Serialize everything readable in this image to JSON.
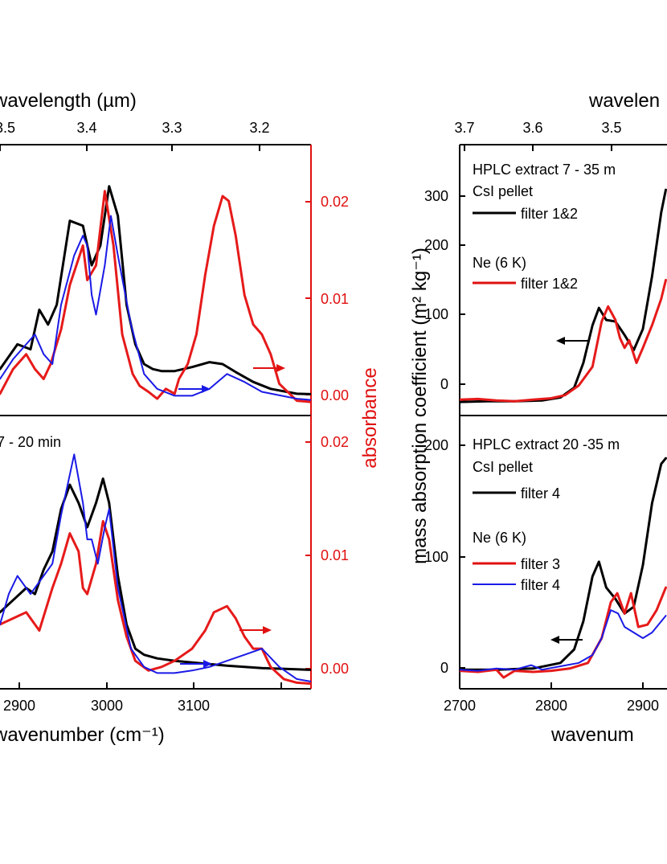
{
  "colors": {
    "black": "#000000",
    "red": "#e61a1a",
    "blue": "#1a1ae6"
  },
  "chart_data": [
    {
      "type": "line",
      "panel": "left-top",
      "x_label_top": "wavelength (µm)",
      "x_ticks_top": [
        "3.5",
        "3.4",
        "3.3",
        "3.2"
      ],
      "ylabel_right": "absorbance",
      "y_ticks_right": [
        "0.00",
        "0.01",
        "0.02"
      ],
      "ylim_right": [
        -0.0012,
        0.0262
      ],
      "xlim": [
        2800,
        3225
      ],
      "series": [
        {
          "color": "black",
          "x": [
            2800,
            2820,
            2835,
            2845,
            2855,
            2865,
            2880,
            2895,
            2905,
            2915,
            2925,
            2935,
            2945,
            2955,
            2965,
            2975,
            2985,
            3000,
            3020,
            3040,
            3055,
            3070,
            3090,
            3110,
            3140,
            3180,
            3225
          ],
          "y": [
            0.0035,
            0.006,
            0.0055,
            0.0095,
            0.008,
            0.01,
            0.0185,
            0.018,
            0.014,
            0.016,
            0.022,
            0.019,
            0.01,
            0.006,
            0.004,
            0.0035,
            0.0033,
            0.0033,
            0.0037,
            0.0042,
            0.004,
            0.0032,
            0.0022,
            0.0015,
            0.001,
            0.0009,
            0.0008
          ]
        },
        {
          "color": "red",
          "x": [
            2800,
            2815,
            2830,
            2840,
            2850,
            2858,
            2870,
            2880,
            2895,
            2900,
            2910,
            2920,
            2930,
            2940,
            2952,
            2960,
            2970,
            2980,
            2990,
            3000,
            3005,
            3015,
            3025,
            3035,
            3045,
            3055,
            3062,
            3070,
            3080,
            3090,
            3100,
            3110,
            3120,
            3140,
            3180,
            3225
          ],
          "y": [
            0.001,
            0.0035,
            0.005,
            0.0035,
            0.0025,
            0.004,
            0.0075,
            0.012,
            0.016,
            0.0125,
            0.014,
            0.0215,
            0.016,
            0.007,
            0.003,
            0.0018,
            0.0012,
            0.0005,
            0.0015,
            0.001,
            0.0025,
            0.004,
            0.007,
            0.013,
            0.018,
            0.021,
            0.0205,
            0.017,
            0.011,
            0.008,
            0.007,
            0.005,
            0.002,
            0.0003,
            0.0,
            0.0
          ]
        },
        {
          "color": "blue",
          "x": [
            2800,
            2815,
            2830,
            2840,
            2850,
            2860,
            2870,
            2885,
            2895,
            2900,
            2905,
            2910,
            2920,
            2927,
            2935,
            2950,
            2965,
            2980,
            3000,
            3020,
            3040,
            3060,
            3080,
            3100,
            3140,
            3180,
            3225
          ],
          "y": [
            0.0025,
            0.0045,
            0.006,
            0.007,
            0.005,
            0.004,
            0.01,
            0.015,
            0.017,
            0.016,
            0.011,
            0.009,
            0.014,
            0.019,
            0.015,
            0.008,
            0.003,
            0.0015,
            0.0008,
            0.0008,
            0.0015,
            0.003,
            0.0022,
            0.0012,
            0.0005,
            0.0002,
            0.0
          ]
        }
      ],
      "arrows": [
        "red-right",
        "blue-right"
      ]
    },
    {
      "type": "line",
      "panel": "left-bottom",
      "annotation": "7 - 20 min",
      "xlabel": "wavenumber (cm⁻¹)",
      "x_ticks": [
        "2900",
        "3000",
        "3100"
      ],
      "ylabel_right": "absorbance",
      "y_ticks_right": [
        "0.00",
        "0.01"
      ],
      "ylim_right": [
        -0.0003,
        0.0222
      ],
      "xlim": [
        2800,
        3225
      ],
      "series": [
        {
          "color": "black",
          "x": [
            2800,
            2815,
            2830,
            2840,
            2850,
            2860,
            2870,
            2880,
            2890,
            2900,
            2910,
            2918,
            2925,
            2935,
            2945,
            2955,
            2965,
            2980,
            3000,
            3030,
            3060,
            3100,
            3140,
            3180,
            3225
          ],
          "y": [
            0.006,
            0.007,
            0.008,
            0.0075,
            0.0095,
            0.011,
            0.0145,
            0.0165,
            0.015,
            0.013,
            0.015,
            0.017,
            0.015,
            0.009,
            0.005,
            0.003,
            0.0025,
            0.0022,
            0.002,
            0.0018,
            0.0016,
            0.0014,
            0.0013,
            0.0012,
            0.0012
          ]
        },
        {
          "color": "red",
          "x": [
            2800,
            2815,
            2830,
            2845,
            2860,
            2870,
            2880,
            2890,
            2895,
            2900,
            2910,
            2918,
            2925,
            2935,
            2945,
            2955,
            2970,
            2985,
            3000,
            3020,
            3035,
            3045,
            3060,
            3070,
            3080,
            3090,
            3100,
            3110,
            3125,
            3140,
            3180,
            3225
          ],
          "y": [
            0.005,
            0.0055,
            0.006,
            0.0045,
            0.008,
            0.01,
            0.0125,
            0.011,
            0.008,
            0.0075,
            0.01,
            0.0135,
            0.012,
            0.007,
            0.004,
            0.002,
            0.0012,
            0.0015,
            0.002,
            0.003,
            0.0045,
            0.006,
            0.0065,
            0.0055,
            0.004,
            0.003,
            0.003,
            0.0015,
            0.0005,
            0.0002,
            0.0,
            0.0
          ]
        },
        {
          "color": "blue",
          "x": [
            2800,
            2810,
            2820,
            2835,
            2850,
            2860,
            2870,
            2885,
            2895,
            2900,
            2905,
            2912,
            2920,
            2925,
            2935,
            2950,
            2965,
            2980,
            3000,
            3020,
            3040,
            3060,
            3080,
            3100,
            3120,
            3140,
            3180,
            3225
          ],
          "y": [
            0.005,
            0.0075,
            0.009,
            0.0075,
            0.009,
            0.01,
            0.014,
            0.019,
            0.015,
            0.012,
            0.012,
            0.01,
            0.013,
            0.0145,
            0.008,
            0.003,
            0.0015,
            0.001,
            0.001,
            0.0012,
            0.0015,
            0.002,
            0.0025,
            0.003,
            0.0015,
            0.0005,
            0.0,
            0.0
          ]
        }
      ],
      "arrows": [
        "red-right",
        "blue-right"
      ]
    },
    {
      "type": "line",
      "panel": "right-top",
      "x_label_top": "wavelen",
      "x_ticks_top": [
        "3.7",
        "3.6",
        "3.5"
      ],
      "ylabel": "mass absorption coefficient (m² kg⁻¹)",
      "y_ticks": [
        "0",
        "100",
        "200",
        "300"
      ],
      "ylim": [
        -15,
        345
      ],
      "xlim": [
        2700,
        2925
      ],
      "legend": {
        "title": "HPLC extract 7 - 35 m",
        "groups": [
          {
            "label": "CsI pellet",
            "entries": [
              {
                "color": "black",
                "label": "filter 1&2"
              }
            ]
          },
          {
            "label": "Ne (6 K)",
            "entries": [
              {
                "color": "red",
                "label": "filter 1&2"
              }
            ]
          }
        ]
      },
      "series": [
        {
          "color": "black",
          "x": [
            2700,
            2730,
            2760,
            2790,
            2810,
            2825,
            2835,
            2845,
            2852,
            2860,
            2870,
            2880,
            2890,
            2900,
            2910,
            2920,
            2925
          ],
          "y": [
            3,
            4,
            4,
            5,
            9,
            22,
            55,
            105,
            128,
            112,
            110,
            92,
            72,
            100,
            170,
            255,
            285
          ]
        },
        {
          "color": "red",
          "x": [
            2700,
            2720,
            2740,
            2760,
            2780,
            2800,
            2815,
            2830,
            2845,
            2855,
            2862,
            2870,
            2875,
            2880,
            2885,
            2893,
            2900,
            2910,
            2920,
            2925
          ],
          "y": [
            6,
            7,
            5,
            4,
            6,
            8,
            12,
            25,
            50,
            110,
            130,
            112,
            88,
            75,
            85,
            55,
            75,
            105,
            140,
            165
          ]
        }
      ],
      "arrows": [
        "black-left"
      ]
    },
    {
      "type": "line",
      "panel": "right-bottom",
      "xlabel": "wavenum",
      "x_ticks": [
        "2700",
        "2800",
        "2900"
      ],
      "y_ticks": [
        "0",
        "100",
        "200"
      ],
      "ylim": [
        -15,
        228
      ],
      "xlim": [
        2700,
        2925
      ],
      "legend": {
        "title": "HPLC extract 20 -35 m",
        "groups": [
          {
            "label": "CsI pellet",
            "entries": [
              {
                "color": "black",
                "label": "filter 4"
              }
            ]
          },
          {
            "label": "Ne (6 K)",
            "entries": [
              {
                "color": "red",
                "label": "filter 3"
              },
              {
                "color": "blue",
                "label": "filter 4"
              }
            ]
          }
        ]
      },
      "series": [
        {
          "color": "black",
          "x": [
            2700,
            2740,
            2780,
            2810,
            2825,
            2835,
            2845,
            2852,
            2860,
            2870,
            2880,
            2890,
            2900,
            2910,
            2920,
            2925
          ],
          "y": [
            2,
            2,
            3,
            8,
            20,
            45,
            85,
            98,
            75,
            65,
            52,
            58,
            95,
            150,
            185,
            190
          ]
        },
        {
          "color": "red",
          "x": [
            2700,
            2720,
            2740,
            2748,
            2760,
            2780,
            2800,
            2820,
            2840,
            2855,
            2865,
            2872,
            2880,
            2887,
            2895,
            2905,
            2915,
            2925
          ],
          "y": [
            1,
            0,
            2,
            -5,
            1,
            0,
            1,
            3,
            8,
            30,
            62,
            70,
            52,
            70,
            40,
            42,
            55,
            75
          ]
        },
        {
          "color": "blue",
          "x": [
            2700,
            2720,
            2740,
            2760,
            2778,
            2790,
            2810,
            2830,
            2845,
            2855,
            2865,
            2873,
            2880,
            2890,
            2900,
            2910,
            2925
          ],
          "y": [
            2,
            1,
            3,
            2,
            6,
            2,
            5,
            8,
            15,
            30,
            55,
            52,
            40,
            35,
            30,
            35,
            50
          ]
        }
      ],
      "arrows": [
        "black-left"
      ]
    }
  ]
}
